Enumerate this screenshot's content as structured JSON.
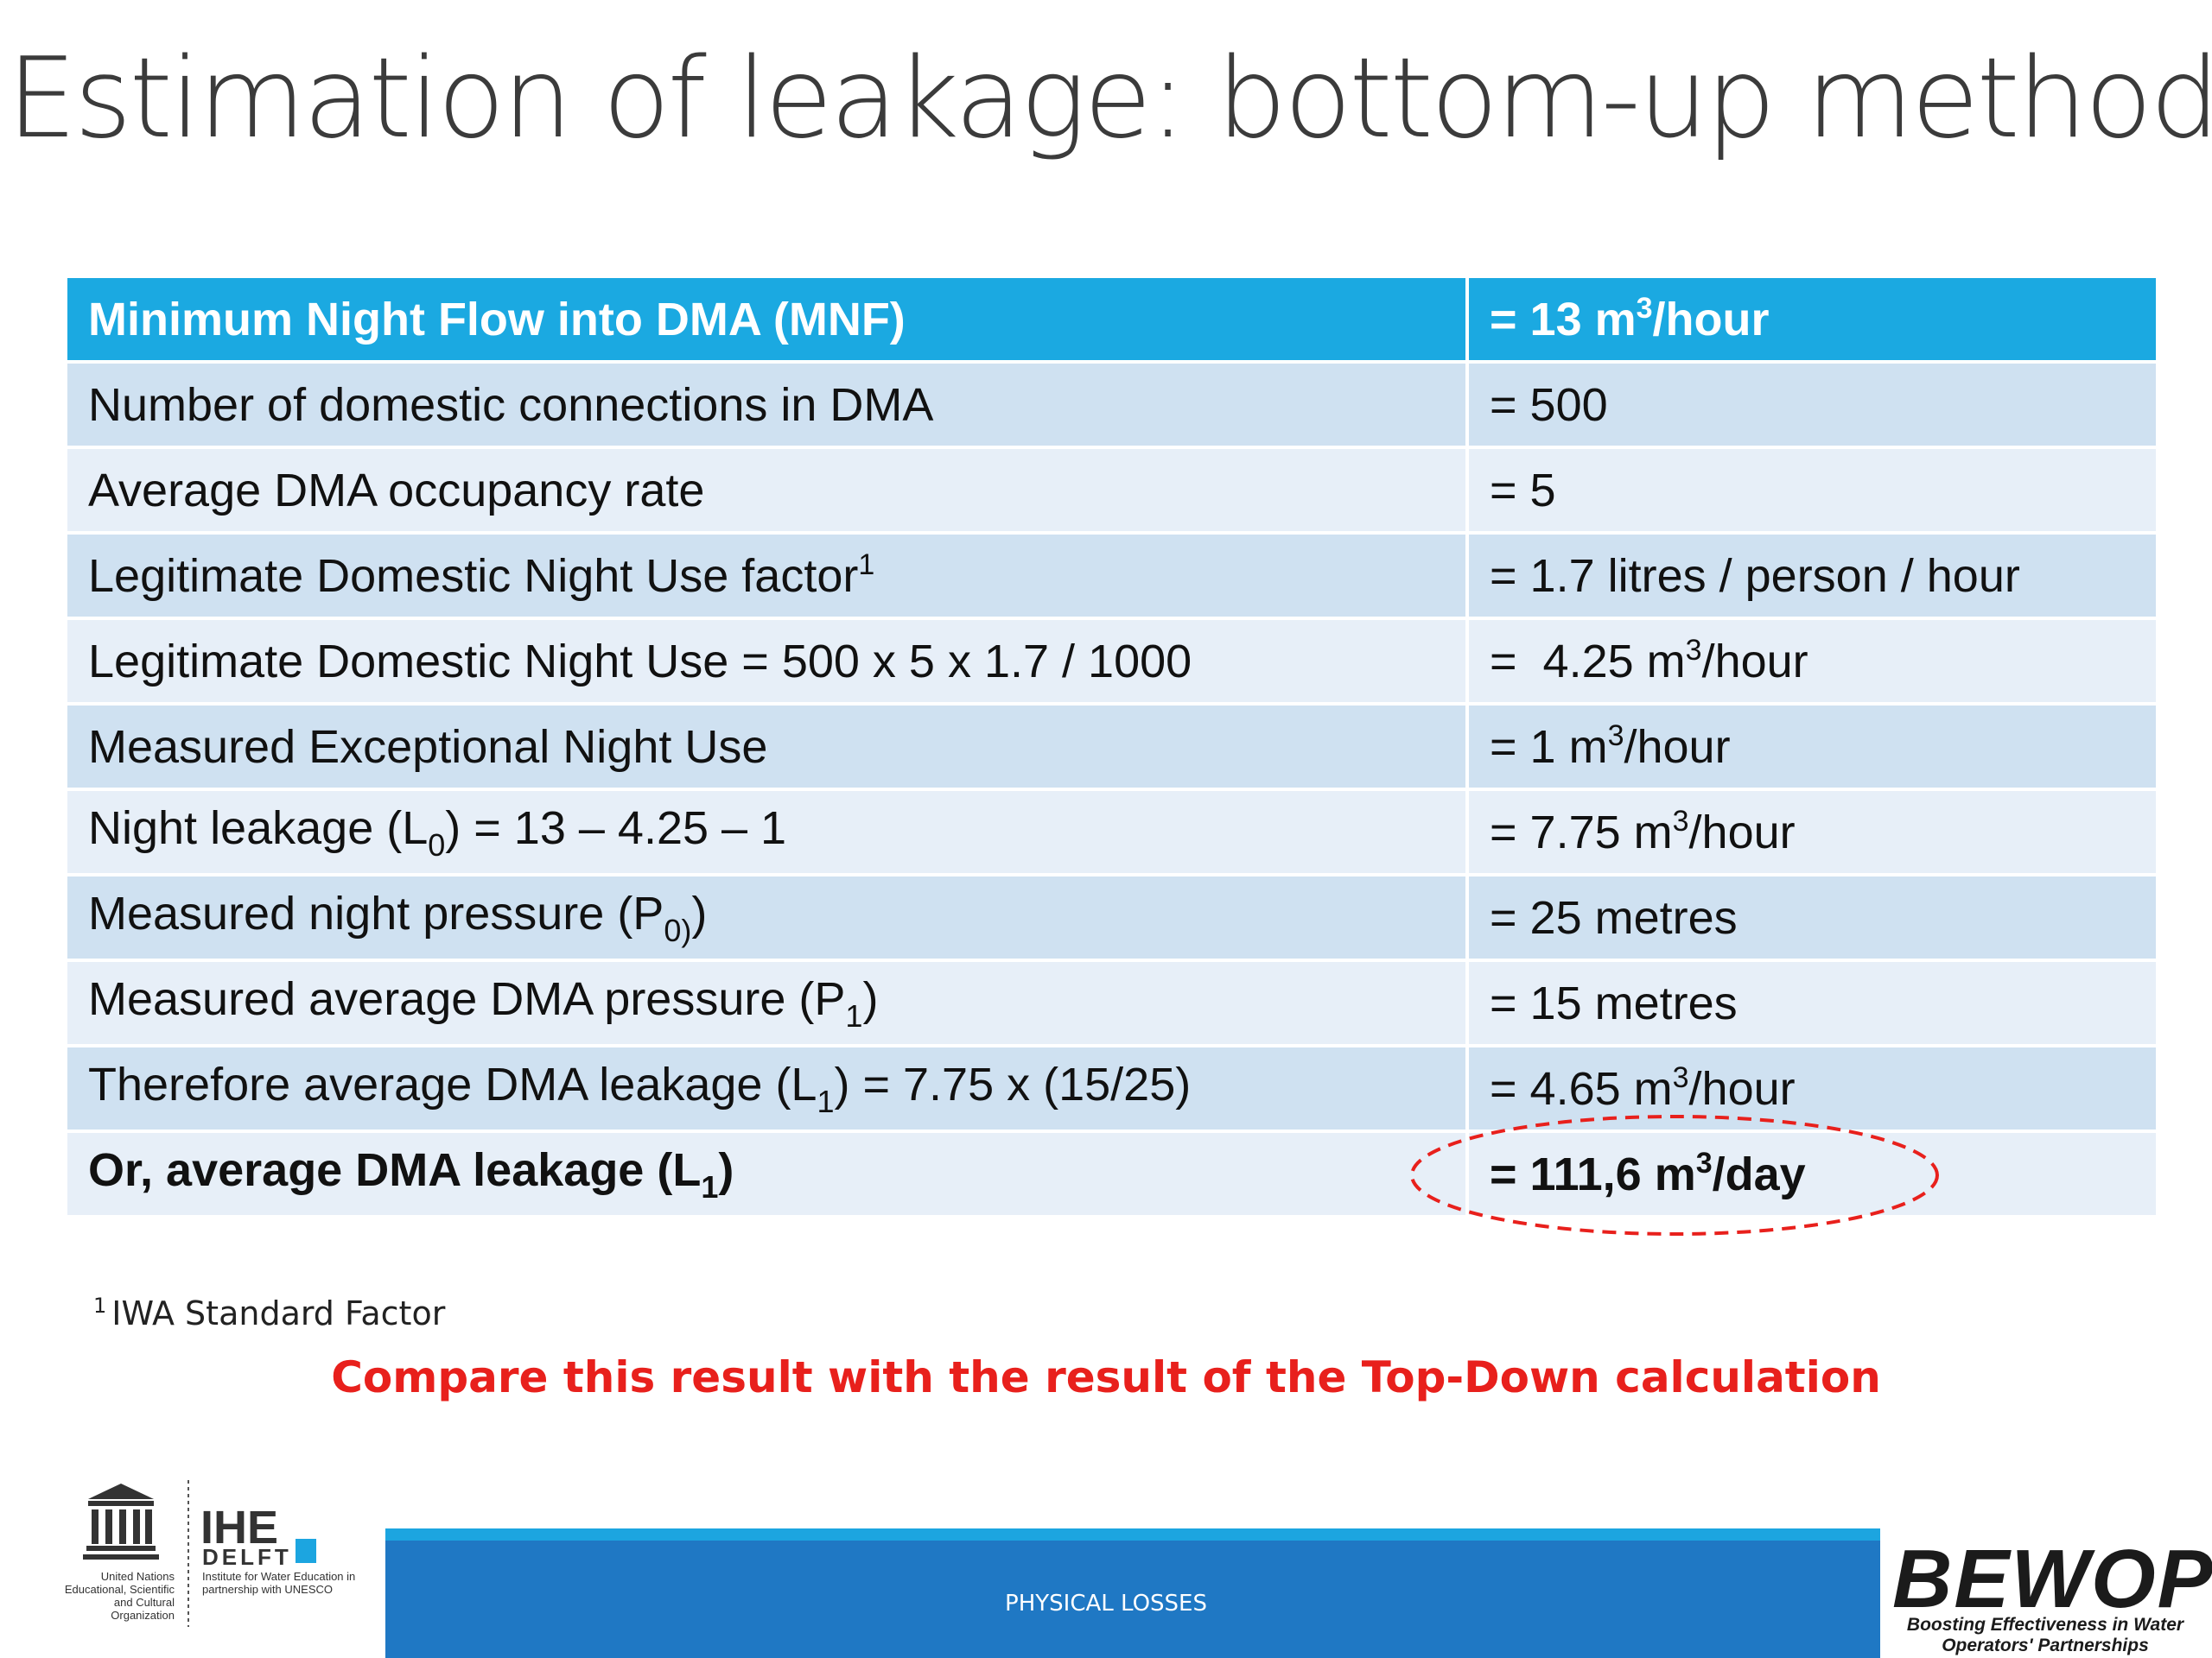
{
  "title": "Estimation of leakage: bottom-up method",
  "rows": [
    {
      "label": "Minimum Night Flow into DMA (MNF)",
      "value": "= 13 m",
      "value_sup": "3",
      "value_after": "/hour"
    },
    {
      "label": "Number of domestic connections in DMA",
      "value": "= 500"
    },
    {
      "label": "Average DMA occupancy rate",
      "value": "= 5"
    },
    {
      "label": "Legitimate Domestic Night Use factor",
      "label_sup": "1",
      "value": "= 1.7 litres / person / hour"
    },
    {
      "label": "Legitimate Domestic Night Use = 500 x 5 x 1.7 / 1000",
      "value": "=  4.25 m",
      "value_sup": "3",
      "value_after": "/hour"
    },
    {
      "label": "Measured Exceptional Night Use",
      "value": "= 1 m",
      "value_sup": "3",
      "value_after": "/hour"
    },
    {
      "label": "Night leakage (L",
      "label_sub": "0",
      "label_after": ") = 13 – 4.25 – 1",
      "value": "= 7.75 m",
      "value_sup": "3",
      "value_after": "/hour"
    },
    {
      "label": "Measured night pressure (P",
      "label_sub": "0)",
      "label_after": ")",
      "value": "= 25 metres"
    },
    {
      "label": "Measured average DMA pressure (P",
      "label_sub": "1",
      "label_after": ")",
      "value": "= 15 metres"
    },
    {
      "label": "Therefore average DMA leakage (L",
      "label_sub": "1",
      "label_after": ") = 7.75 x (15/25)",
      "value": "= 4.65 m",
      "value_sup": "3",
      "value_after": "/hour"
    },
    {
      "label": "Or, average DMA leakage (L",
      "label_sub": "1",
      "label_after": ")",
      "value": "= 111,6 m",
      "value_sup": "3",
      "value_after": "/day"
    }
  ],
  "footnote": {
    "marker": "1",
    "text": "IWA Standard Factor"
  },
  "compare_note": "Compare this result with the result of the Top-Down calculation",
  "footer": {
    "label": "PHYSICAL LOSSES"
  },
  "logos": {
    "unesco_caption": "United Nations Educational, Scientific and Cultural Organization",
    "ihe_name": "IHE",
    "ihe_sub": "DELFT",
    "ihe_caption": "Institute for Water Education in partnership with UNESCO",
    "bewop_name": "BEWOP",
    "bewop_tagline": "Boosting Effectiveness in Water Operators' Partnerships"
  },
  "colors": {
    "header_row": "#1ba9e1",
    "row_dark": "#cfe1f1",
    "row_light": "#e7eff8",
    "compare_text": "#e8201c",
    "highlight_ring": "#e8201c",
    "footer_bar": "#1f78c4"
  }
}
